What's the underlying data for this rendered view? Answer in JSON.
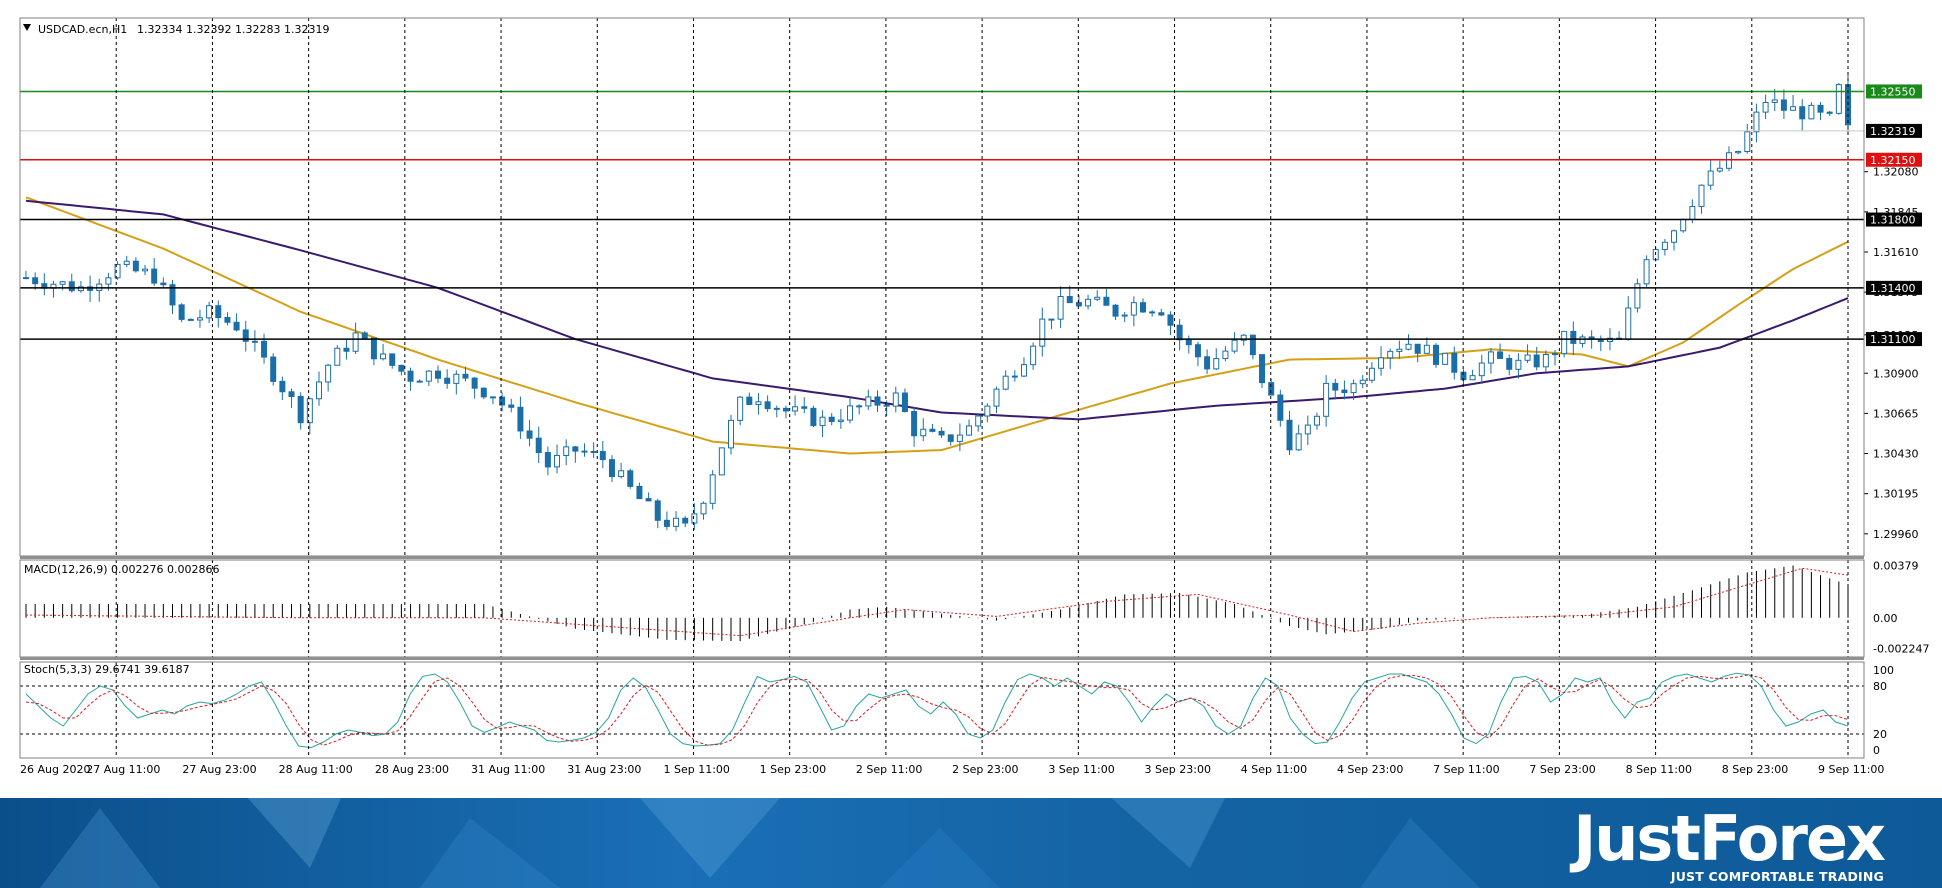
{
  "chart_header": {
    "symbol": "USDCAD.ecn,H1",
    "ohlc": "1.32334 1.32392 1.32283 1.32319"
  },
  "chart_data": [
    {
      "type": "candlestick",
      "title": "USDCAD.ecn,H1",
      "ylim": [
        1.2983,
        1.3298
      ],
      "y_ticks": [
        1.3208,
        1.31845,
        1.3161,
        1.31375,
        1.31125,
        1.309,
        1.30665,
        1.3043,
        1.30195,
        1.2996
      ],
      "x_ticks": [
        "26 Aug 2020",
        "27 Aug 11:00",
        "27 Aug 23:00",
        "28 Aug 11:00",
        "28 Aug 23:00",
        "31 Aug 11:00",
        "31 Aug 23:00",
        "1 Sep 11:00",
        "1 Sep 23:00",
        "2 Sep 11:00",
        "2 Sep 23:00",
        "3 Sep 11:00",
        "3 Sep 23:00",
        "4 Sep 11:00",
        "4 Sep 23:00",
        "7 Sep 11:00",
        "7 Sep 23:00",
        "8 Sep 11:00",
        "8 Sep 23:00",
        "9 Sep 11:00"
      ],
      "grid": true,
      "horizontal_levels": [
        {
          "value": 1.3255,
          "label": "1.32550",
          "color": "#1a8a1a"
        },
        {
          "value": 1.32319,
          "label": "1.32319",
          "color": "#000000",
          "role": "current price"
        },
        {
          "value": 1.3215,
          "label": "1.32150",
          "color": "#e01010"
        },
        {
          "value": 1.318,
          "label": "1.31800",
          "color": "#000000"
        },
        {
          "value": 1.314,
          "label": "1.31400",
          "color": "#000000"
        },
        {
          "value": 1.311,
          "label": "1.31100",
          "color": "#000000"
        }
      ],
      "candle_color": "#1b6fa8",
      "price_path": [
        [
          0,
          1.3146
        ],
        [
          6,
          1.314
        ],
        [
          10,
          1.3152
        ],
        [
          14,
          1.3147
        ],
        [
          17,
          1.312
        ],
        [
          20,
          1.3125
        ],
        [
          23,
          1.3118
        ],
        [
          27,
          1.309
        ],
        [
          30,
          1.3066
        ],
        [
          33,
          1.3095
        ],
        [
          36,
          1.3112
        ],
        [
          39,
          1.3098
        ],
        [
          42,
          1.3088
        ],
        [
          45,
          1.3091
        ],
        [
          48,
          1.3085
        ],
        [
          51,
          1.3078
        ],
        [
          54,
          1.306
        ],
        [
          57,
          1.3036
        ],
        [
          60,
          1.3045
        ],
        [
          63,
          1.304
        ],
        [
          66,
          1.3022
        ],
        [
          69,
          1.3005
        ],
        [
          72,
          1.2999
        ],
        [
          74,
          1.3018
        ],
        [
          76,
          1.3048
        ],
        [
          78,
          1.3072
        ],
        [
          80,
          1.3077
        ],
        [
          83,
          1.3068
        ],
        [
          87,
          1.3062
        ],
        [
          91,
          1.307
        ],
        [
          95,
          1.3076
        ],
        [
          97,
          1.3057
        ],
        [
          100,
          1.305
        ],
        [
          103,
          1.3058
        ],
        [
          106,
          1.308
        ],
        [
          109,
          1.31
        ],
        [
          111,
          1.312
        ],
        [
          113,
          1.313
        ],
        [
          116,
          1.3132
        ],
        [
          119,
          1.3126
        ],
        [
          121,
          1.3131
        ],
        [
          124,
          1.3128
        ],
        [
          126,
          1.311
        ],
        [
          129,
          1.3095
        ],
        [
          131,
          1.3103
        ],
        [
          133,
          1.311
        ],
        [
          136,
          1.3075
        ],
        [
          138,
          1.305
        ],
        [
          140,
          1.3055
        ],
        [
          142,
          1.308
        ],
        [
          145,
          1.3083
        ],
        [
          148,
          1.3104
        ],
        [
          151,
          1.3108
        ],
        [
          154,
          1.31
        ],
        [
          157,
          1.309
        ],
        [
          160,
          1.3098
        ],
        [
          163,
          1.3095
        ],
        [
          166,
          1.3098
        ],
        [
          168,
          1.311
        ],
        [
          171,
          1.3108
        ],
        [
          174,
          1.3108
        ],
        [
          177,
          1.316
        ],
        [
          180,
          1.3175
        ],
        [
          183,
          1.32
        ],
        [
          185,
          1.321
        ],
        [
          187,
          1.322
        ],
        [
          190,
          1.325
        ],
        [
          192,
          1.3245
        ],
        [
          195,
          1.3242
        ],
        [
          197,
          1.3238
        ],
        [
          198,
          1.3256
        ],
        [
          199,
          1.3232
        ]
      ],
      "series": [
        {
          "name": "MA fast",
          "color": "#d4a017",
          "points": [
            [
              0,
              1.3193
            ],
            [
              15,
              1.3163
            ],
            [
              30,
              1.3126
            ],
            [
              45,
              1.3098
            ],
            [
              60,
              1.3073
            ],
            [
              75,
              1.305
            ],
            [
              90,
              1.3043
            ],
            [
              100,
              1.3045
            ],
            [
              112,
              1.3064
            ],
            [
              125,
              1.3084
            ],
            [
              138,
              1.3098
            ],
            [
              150,
              1.3099
            ],
            [
              160,
              1.3104
            ],
            [
              170,
              1.3101
            ],
            [
              175,
              1.3094
            ],
            [
              181,
              1.3108
            ],
            [
              187,
              1.313
            ],
            [
              193,
              1.3151
            ],
            [
              199,
              1.3167
            ]
          ]
        },
        {
          "name": "MA slow",
          "color": "#3a1a6e",
          "points": [
            [
              0,
              1.3191
            ],
            [
              15,
              1.3183
            ],
            [
              30,
              1.3162
            ],
            [
              45,
              1.314
            ],
            [
              60,
              1.311
            ],
            [
              75,
              1.3087
            ],
            [
              90,
              1.3076
            ],
            [
              100,
              1.3067
            ],
            [
              115,
              1.3063
            ],
            [
              130,
              1.3071
            ],
            [
              145,
              1.3076
            ],
            [
              155,
              1.3081
            ],
            [
              165,
              1.309
            ],
            [
              175,
              1.3094
            ],
            [
              185,
              1.3105
            ],
            [
              193,
              1.3121
            ],
            [
              199,
              1.3134
            ]
          ]
        }
      ]
    },
    {
      "type": "bar",
      "title": "MACD(12,26,9) 0.002276 0.002866",
      "ylim": [
        -0.00285,
        0.0042
      ],
      "y_ticks": [
        0.00379,
        0.0,
        -0.002247
      ],
      "y_tick_labels": [
        "0.00379",
        "0.00",
        "-0.002247"
      ],
      "histogram_path": [
        [
          0,
          0.001
        ],
        [
          30,
          0.001
        ],
        [
          40,
          0.001
        ],
        [
          50,
          0.001
        ],
        [
          60,
          -0.0008
        ],
        [
          70,
          -0.0016
        ],
        [
          78,
          -0.0017
        ],
        [
          86,
          -0.0003
        ],
        [
          90,
          0.0006
        ],
        [
          94,
          0.0008
        ],
        [
          100,
          0.0003
        ],
        [
          106,
          -0.0002
        ],
        [
          113,
          0.0006
        ],
        [
          120,
          0.0017
        ],
        [
          126,
          0.0018
        ],
        [
          132,
          0.001
        ],
        [
          138,
          -0.0006
        ],
        [
          142,
          -0.0012
        ],
        [
          148,
          -0.0008
        ],
        [
          152,
          -0.0002
        ],
        [
          158,
          0.0
        ],
        [
          164,
          0.0001
        ],
        [
          170,
          0.0002
        ],
        [
          176,
          0.0008
        ],
        [
          182,
          0.002
        ],
        [
          188,
          0.0033
        ],
        [
          193,
          0.0038
        ],
        [
          199,
          0.0024
        ]
      ],
      "signal_path": [
        [
          0,
          0.0002
        ],
        [
          30,
          0.0
        ],
        [
          50,
          0.0
        ],
        [
          65,
          -0.0007
        ],
        [
          78,
          -0.0013
        ],
        [
          90,
          0.0
        ],
        [
          96,
          0.0006
        ],
        [
          106,
          0.0001
        ],
        [
          118,
          0.0012
        ],
        [
          128,
          0.0017
        ],
        [
          138,
          0.0002
        ],
        [
          145,
          -0.001
        ],
        [
          152,
          -0.0004
        ],
        [
          160,
          0.0
        ],
        [
          172,
          0.0002
        ],
        [
          180,
          0.0008
        ],
        [
          188,
          0.0024
        ],
        [
          194,
          0.0036
        ],
        [
          199,
          0.0031
        ]
      ],
      "signal_color": "#d42020"
    },
    {
      "type": "line",
      "title": "Stoch(5,3,3) 29.6741 39.6187",
      "ylim": [
        0,
        100
      ],
      "y_ticks": [
        100,
        80,
        20,
        0
      ],
      "levels": [
        80,
        20
      ],
      "series": [
        {
          "name": "%K",
          "color": "#2aa5a0",
          "values": [
            70,
            55,
            40,
            30,
            50,
            70,
            80,
            75,
            55,
            40,
            45,
            50,
            45,
            55,
            60,
            58,
            62,
            70,
            80,
            85,
            60,
            30,
            5,
            3,
            10,
            20,
            25,
            22,
            18,
            20,
            35,
            70,
            92,
            95,
            85,
            60,
            30,
            22,
            28,
            35,
            30,
            25,
            12,
            10,
            12,
            15,
            22,
            40,
            75,
            90,
            78,
            50,
            20,
            8,
            5,
            6,
            8,
            25,
            60,
            92,
            85,
            88,
            92,
            85,
            55,
            25,
            30,
            55,
            70,
            65,
            70,
            75,
            55,
            45,
            60,
            45,
            20,
            15,
            25,
            60,
            88,
            95,
            90,
            80,
            90,
            80,
            70,
            85,
            80,
            60,
            35,
            55,
            70,
            60,
            65,
            55,
            30,
            20,
            30,
            65,
            90,
            80,
            40,
            20,
            8,
            10,
            35,
            65,
            85,
            90,
            95,
            95,
            90,
            85,
            70,
            45,
            15,
            8,
            20,
            60,
            90,
            92,
            85,
            60,
            70,
            90,
            85,
            90,
            60,
            40,
            60,
            65,
            85,
            92,
            95,
            90,
            85,
            92,
            96,
            94,
            80,
            50,
            30,
            35,
            45,
            50,
            35,
            30
          ]
        },
        {
          "name": "%D",
          "color": "#d42020",
          "values": [
            60,
            58,
            50,
            40,
            40,
            55,
            68,
            75,
            68,
            55,
            46,
            46,
            47,
            50,
            54,
            57,
            60,
            64,
            72,
            80,
            74,
            58,
            32,
            13,
            6,
            11,
            18,
            22,
            21,
            20,
            24,
            42,
            65,
            86,
            90,
            80,
            60,
            38,
            27,
            28,
            31,
            30,
            22,
            15,
            11,
            12,
            16,
            26,
            45,
            68,
            81,
            72,
            49,
            26,
            11,
            6,
            7,
            13,
            31,
            59,
            79,
            88,
            88,
            88,
            74,
            50,
            36,
            37,
            51,
            63,
            68,
            70,
            66,
            58,
            53,
            50,
            42,
            27,
            20,
            33,
            58,
            81,
            91,
            88,
            86,
            83,
            80,
            78,
            78,
            75,
            58,
            50,
            53,
            61,
            65,
            60,
            50,
            35,
            27,
            38,
            62,
            78,
            70,
            46,
            22,
            12,
            18,
            37,
            62,
            80,
            90,
            93,
            93,
            90,
            82,
            67,
            43,
            22,
            15,
            30,
            57,
            81,
            89,
            79,
            72,
            73,
            82,
            88,
            78,
            63,
            53,
            55,
            70,
            81,
            90,
            92,
            90,
            89,
            91,
            94,
            90,
            75,
            53,
            38,
            37,
            43,
            43,
            38
          ]
        }
      ]
    }
  ],
  "banner": {
    "brand": "JustForex",
    "slogan": "JUST COMFORTABLE TRADING"
  },
  "colors": {
    "candle": "#1b6fa8",
    "grid": "#000000",
    "panel_border": "#808080",
    "level_green": "#1a8a1a",
    "level_red": "#e01010"
  }
}
